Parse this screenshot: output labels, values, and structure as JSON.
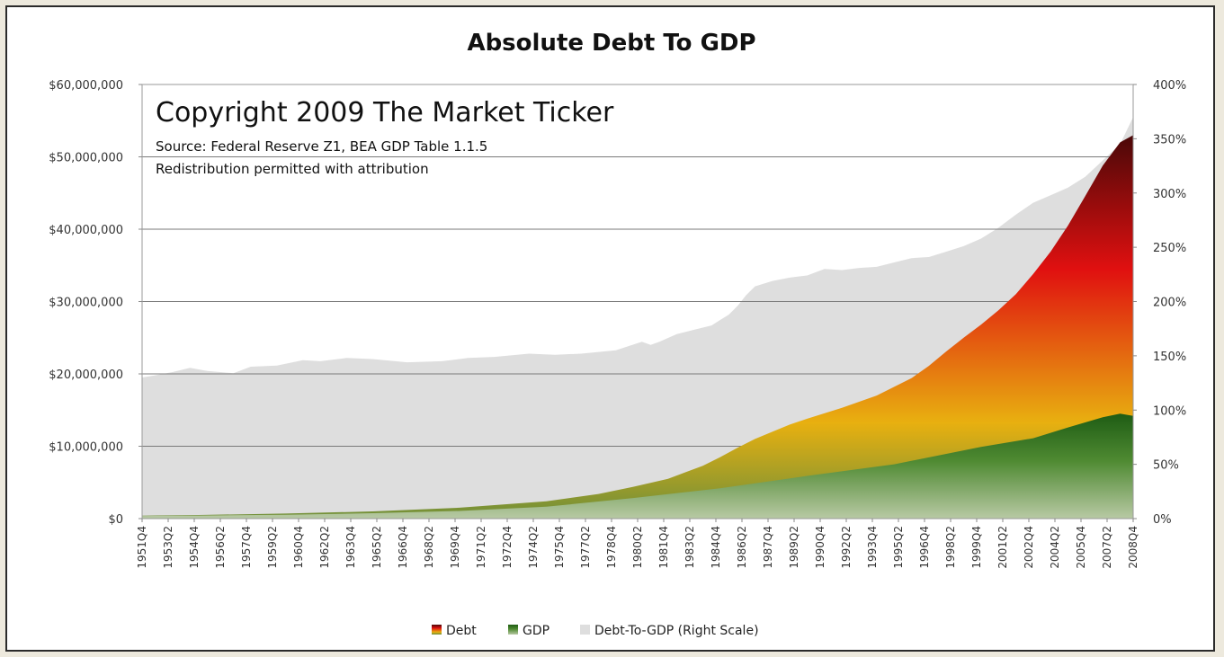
{
  "chart_data": {
    "type": "area",
    "title": "Absolute Debt To GDP",
    "annotations": {
      "copyright": "Copyright 2009 The Market Ticker",
      "source": "Source: Federal Reserve Z1, BEA GDP Table 1.1.5",
      "redistribution": "Redistribution permitted with attribution"
    },
    "y_left": {
      "ylim": [
        0,
        60000000
      ],
      "ticks": [
        "$0",
        "$10,000,000",
        "$20,000,000",
        "$30,000,000",
        "$40,000,000",
        "$50,000,000",
        "$60,000,000"
      ]
    },
    "y_right": {
      "ylim": [
        0,
        400
      ],
      "ticks": [
        "0%",
        "50%",
        "100%",
        "150%",
        "200%",
        "250%",
        "300%",
        "350%",
        "400%"
      ]
    },
    "x_tick_labels": [
      "1951Q4",
      "1953Q2",
      "1954Q4",
      "1956Q2",
      "1957Q4",
      "1959Q2",
      "1960Q4",
      "1962Q2",
      "1963Q4",
      "1965Q2",
      "1966Q4",
      "1968Q2",
      "1969Q4",
      "1971Q2",
      "1972Q4",
      "1974Q2",
      "1975Q4",
      "1977Q2",
      "1978Q4",
      "1980Q2",
      "1981Q4",
      "1983Q2",
      "1984Q4",
      "1986Q2",
      "1987Q4",
      "1989Q2",
      "1990Q4",
      "1992Q2",
      "1993Q4",
      "1995Q2",
      "1996Q4",
      "1998Q2",
      "1999Q4",
      "2001Q2",
      "2002Q4",
      "2004Q2",
      "2005Q4",
      "2007Q2",
      "2008Q4"
    ],
    "x_range": [
      "1951Q4",
      "2008Q4"
    ],
    "grid": true,
    "legend_placement": "bottom",
    "series": [
      {
        "name": "Debt",
        "axis": "left",
        "colors": [
          "#4a0808",
          "#e01010",
          "#e8b010",
          "#6e8f3a"
        ],
        "x": [
          1951.75,
          1955,
          1960,
          1965,
          1970,
          1975,
          1978,
          1980,
          1982,
          1984,
          1985,
          1986,
          1987,
          1988,
          1989,
          1990,
          1992,
          1994,
          1996,
          1997,
          1998,
          1999,
          2000,
          2001,
          2002,
          2003,
          2004,
          2005,
          2006,
          2007,
          2008,
          2008.75
        ],
        "values": [
          400000,
          500000,
          700000,
          1000000,
          1500000,
          2400000,
          3400000,
          4400000,
          5500000,
          7300000,
          8500000,
          9800000,
          11000000,
          12000000,
          13000000,
          13800000,
          15300000,
          17000000,
          19400000,
          21100000,
          23100000,
          25000000,
          26800000,
          28800000,
          31000000,
          33800000,
          36900000,
          40500000,
          44600000,
          48800000,
          52000000,
          53000000
        ]
      },
      {
        "name": "GDP",
        "axis": "left",
        "colors": [
          "#1e5c14",
          "#4f8a32",
          "#b8c9a4"
        ],
        "x": [
          1951.75,
          1955,
          1960,
          1965,
          1970,
          1975,
          1980,
          1985,
          1990,
          1995,
          2000,
          2003,
          2005,
          2007,
          2008,
          2008.75
        ],
        "values": [
          360000,
          420000,
          540000,
          740000,
          1060000,
          1640000,
          2850000,
          4200000,
          5900000,
          7500000,
          9900000,
          11100000,
          12600000,
          14000000,
          14500000,
          14200000
        ]
      },
      {
        "name": "Debt-To-GDP (Right Scale)",
        "axis": "right",
        "colors": [
          "#dedede"
        ],
        "x": [
          1951.75,
          1952.5,
          1953.5,
          1954.5,
          1955.5,
          1957,
          1958,
          1959.5,
          1961,
          1962,
          1963.5,
          1965,
          1967,
          1969,
          1970.5,
          1972,
          1974,
          1975.5,
          1977,
          1979,
          1980.5,
          1981,
          1981.5,
          1982.5,
          1983.5,
          1984.5,
          1985,
          1985.5,
          1986,
          1986.5,
          1987,
          1988,
          1989,
          1990,
          1991,
          1992,
          1993,
          1994,
          1995,
          1996,
          1997,
          1998,
          1999,
          2000,
          2001,
          2002,
          2003,
          2004,
          2005,
          2006,
          2007,
          2008,
          2008.75
        ],
        "values": [
          130,
          132,
          135,
          139,
          136,
          134,
          140,
          141,
          146,
          145,
          148,
          147,
          144,
          145,
          148,
          149,
          152,
          151,
          152,
          155,
          163,
          160,
          163,
          170,
          174,
          178,
          183,
          188,
          196,
          206,
          214,
          219,
          222,
          224,
          230,
          229,
          231,
          232,
          236,
          240,
          241,
          246,
          251,
          258,
          268,
          280,
          291,
          298,
          305,
          315,
          330,
          345,
          370
        ]
      }
    ]
  },
  "legend": [
    "Debt",
    "GDP",
    "Debt-To-GDP (Right Scale)"
  ]
}
